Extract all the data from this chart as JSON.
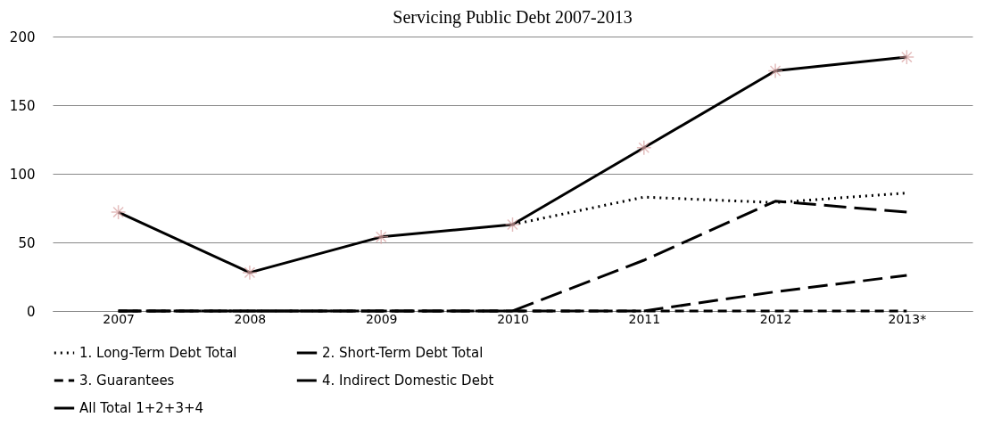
{
  "chart_data": {
    "type": "line",
    "title": "Servicing Public Debt 2007-2013",
    "categories": [
      "2007",
      "2008",
      "2009",
      "2010",
      "2011",
      "2012",
      "2013*"
    ],
    "series": [
      {
        "name": "1. Long-Term Debt Total",
        "color": "#000000",
        "line_style": "dotted",
        "values": [
          null,
          null,
          null,
          63,
          83,
          79,
          86
        ]
      },
      {
        "name": "2. Short-Term Debt Total",
        "color": "#000000",
        "line_style": "dashed",
        "values": [
          0,
          0,
          0,
          0,
          37,
          80,
          72
        ]
      },
      {
        "name": "3. Guarantees",
        "color": "#000000",
        "line_style": "dashed",
        "values": [
          0,
          0,
          0,
          0,
          0,
          0,
          0
        ]
      },
      {
        "name": "4. Indirect Domestic Debt",
        "color": "#000000",
        "line_style": "dashed",
        "values": [
          0,
          0,
          0,
          0,
          0,
          14,
          26
        ]
      },
      {
        "name": "All Total 1+2+3+4",
        "color": "#000000",
        "line_style": "solid",
        "marker": "cross",
        "colors": [
          "#d9a3a3",
          "#d9a3a3",
          "#d9a3a3",
          "#d9a3a3",
          "#d9a3a3",
          "#d9a3a3",
          "#d9a3a3"
        ],
        "values": [
          72,
          28,
          54,
          63,
          119,
          175,
          185
        ]
      }
    ],
    "ylim": [
      0,
      200
    ],
    "yticks": [
      0,
      50,
      100,
      150,
      200
    ],
    "grid": "y",
    "legend": "bottom"
  }
}
